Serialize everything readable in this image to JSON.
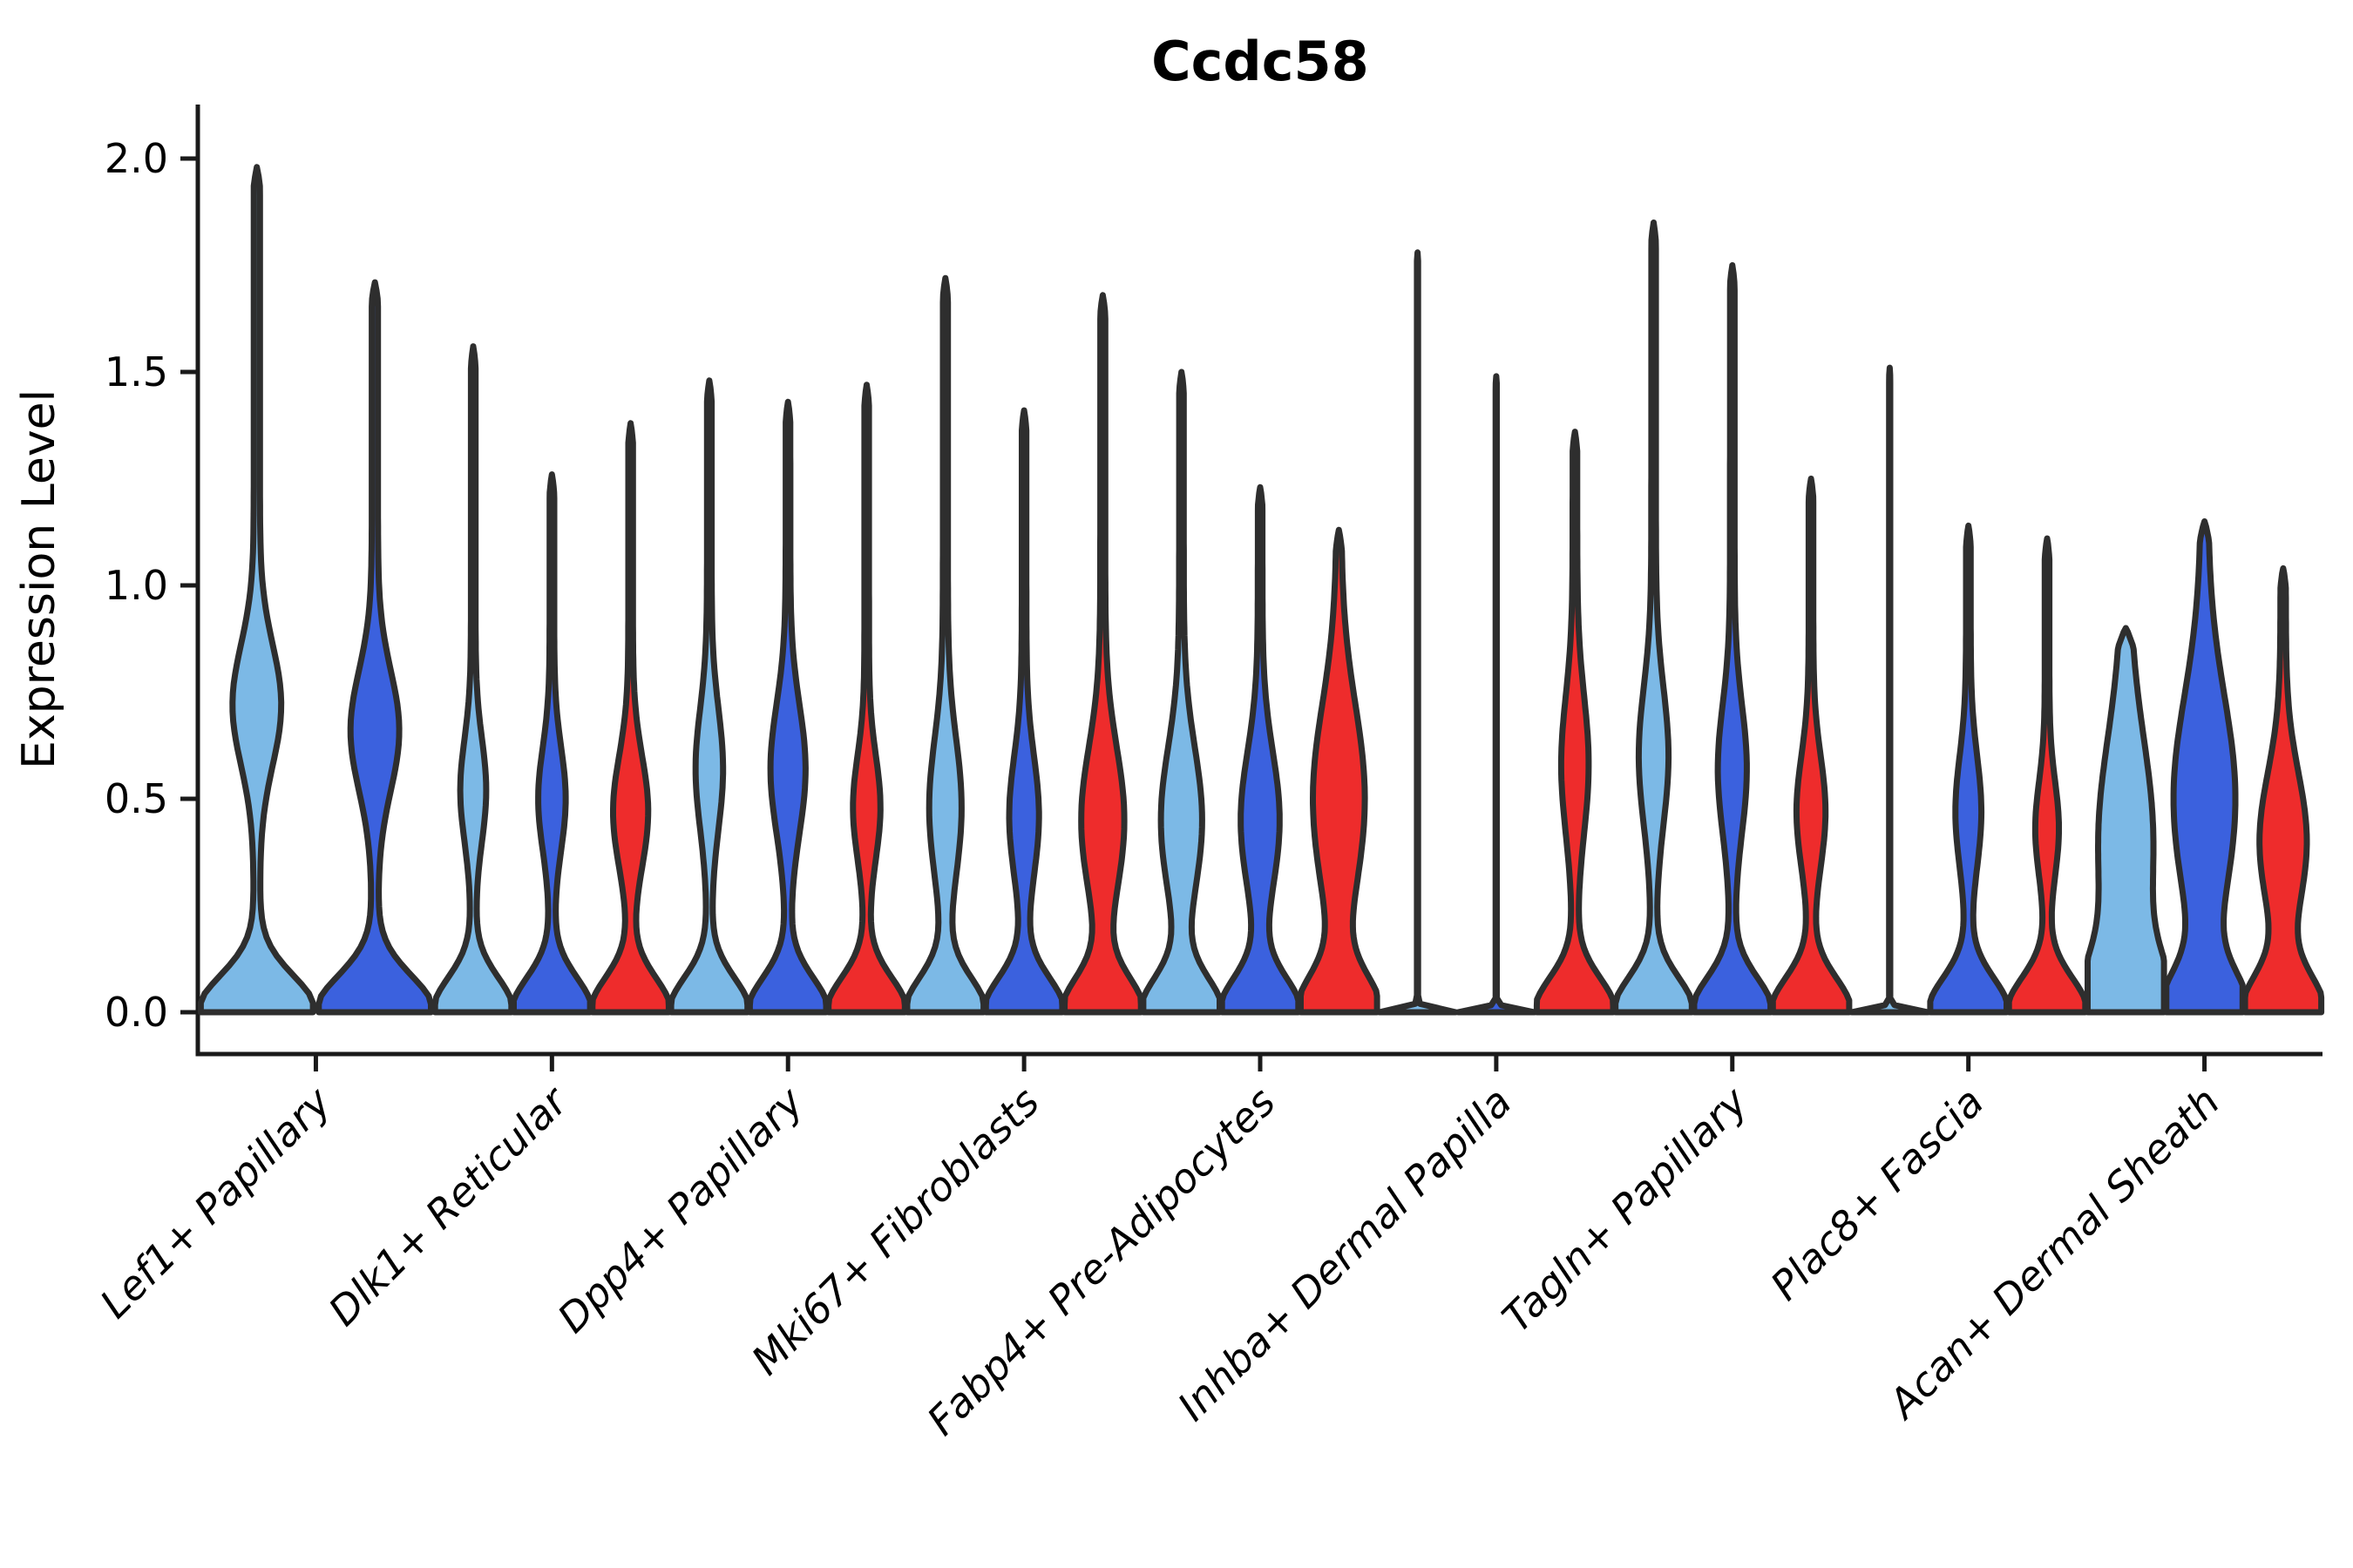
{
  "figure": {
    "background": "#ffffff"
  },
  "chart_data": {
    "type": "violin",
    "title": "Ccdc58",
    "ylabel": "Expression Level",
    "xlabel": "",
    "ylim": [
      0.0,
      2.13
    ],
    "yticks": [
      0.0,
      0.5,
      1.0,
      1.5,
      2.0
    ],
    "ytick_labels": [
      "0.0",
      "0.5",
      "1.0",
      "1.5",
      "2.0"
    ],
    "legend": "none",
    "grid": false,
    "colors": [
      "#7CB9E6",
      "#3B61DE",
      "#EE2C2C"
    ],
    "color_names": [
      "light-blue",
      "dark-blue",
      "red"
    ],
    "edge_color": "#2E2E2E",
    "axis_color": "#1a1a1a",
    "categories": [
      "Lef1+ Papillary",
      "Dlk1+ Reticular",
      "Dpp4+ Papillary",
      "Mki67+ Fibroblasts",
      "Fabp4+ Pre-Adipocytes",
      "Inhba+ Dermal Papilla",
      "Tagln+ Papillary",
      "Plac8+ Fascia",
      "Acan+ Dermal Sheath"
    ],
    "groups": [
      {
        "category": "Lef1+ Papillary",
        "violins": [
          {
            "series": 0,
            "max": 1.98,
            "stem": 0.055,
            "bumps": [
              [
                1,
                0,
                0.085
              ],
              [
                0.38,
                0.72,
                0.14
              ]
            ]
          },
          {
            "series": 1,
            "max": 1.71,
            "stem": 0.055,
            "bumps": [
              [
                1,
                0,
                0.085
              ],
              [
                0.38,
                0.66,
                0.14
              ]
            ]
          }
        ]
      },
      {
        "category": "Dlk1+ Reticular",
        "violins": [
          {
            "series": 0,
            "max": 1.56,
            "stem": 0.06,
            "bumps": [
              [
                1,
                0,
                0.08
              ],
              [
                0.28,
                0.52,
                0.12
              ]
            ]
          },
          {
            "series": 1,
            "max": 1.26,
            "stem": 0.06,
            "bumps": [
              [
                1,
                0,
                0.08
              ],
              [
                0.3,
                0.5,
                0.12
              ]
            ]
          },
          {
            "series": 2,
            "max": 1.38,
            "stem": 0.06,
            "bumps": [
              [
                1,
                0,
                0.08
              ],
              [
                0.4,
                0.47,
                0.13
              ]
            ]
          }
        ]
      },
      {
        "category": "Dpp4+ Papillary",
        "violins": [
          {
            "series": 0,
            "max": 1.48,
            "stem": 0.06,
            "bumps": [
              [
                1,
                0,
                0.08
              ],
              [
                0.3,
                0.57,
                0.14
              ]
            ]
          },
          {
            "series": 1,
            "max": 1.43,
            "stem": 0.06,
            "bumps": [
              [
                1,
                0,
                0.08
              ],
              [
                0.4,
                0.57,
                0.15
              ]
            ]
          },
          {
            "series": 2,
            "max": 1.47,
            "stem": 0.06,
            "bumps": [
              [
                1,
                0,
                0.08
              ],
              [
                0.3,
                0.48,
                0.12
              ]
            ]
          }
        ]
      },
      {
        "category": "Mki67+ Fibroblasts",
        "violins": [
          {
            "series": 0,
            "max": 1.72,
            "stem": 0.065,
            "bumps": [
              [
                1,
                0,
                0.08
              ],
              [
                0.36,
                0.48,
                0.16
              ]
            ]
          },
          {
            "series": 1,
            "max": 1.41,
            "stem": 0.06,
            "bumps": [
              [
                1,
                0,
                0.08
              ],
              [
                0.33,
                0.46,
                0.14
              ]
            ]
          },
          {
            "series": 2,
            "max": 1.68,
            "stem": 0.065,
            "bumps": [
              [
                1,
                0,
                0.08
              ],
              [
                0.5,
                0.45,
                0.17
              ]
            ]
          }
        ]
      },
      {
        "category": "Fabp4+ Pre-Adipocytes",
        "violins": [
          {
            "series": 0,
            "max": 1.5,
            "stem": 0.06,
            "bumps": [
              [
                1,
                0,
                0.08
              ],
              [
                0.48,
                0.45,
                0.17
              ]
            ]
          },
          {
            "series": 1,
            "max": 1.23,
            "stem": 0.06,
            "bumps": [
              [
                1,
                0,
                0.08
              ],
              [
                0.45,
                0.45,
                0.16
              ]
            ]
          },
          {
            "series": 2,
            "max": 1.13,
            "stem": 0.06,
            "bumps": [
              [
                1,
                0,
                0.085
              ],
              [
                0.62,
                0.5,
                0.22
              ]
            ]
          }
        ]
      },
      {
        "category": "Inhba+ Dermal Papilla",
        "violins": [
          {
            "series": 0,
            "max": 1.78,
            "stem": 0.015,
            "line": true,
            "bumps": [
              [
                1,
                0,
                0.008
              ]
            ]
          },
          {
            "series": 1,
            "max": 1.49,
            "stem": 0.015,
            "line": true,
            "bumps": [
              [
                1,
                0,
                0.008
              ]
            ]
          },
          {
            "series": 2,
            "max": 1.36,
            "stem": 0.06,
            "bumps": [
              [
                1,
                0,
                0.08
              ],
              [
                0.3,
                0.58,
                0.16
              ]
            ]
          }
        ]
      },
      {
        "category": "Tagln+ Papillary",
        "violins": [
          {
            "series": 0,
            "max": 1.85,
            "stem": 0.06,
            "bumps": [
              [
                1,
                0,
                0.08
              ],
              [
                0.33,
                0.6,
                0.16
              ]
            ]
          },
          {
            "series": 1,
            "max": 1.75,
            "stem": 0.06,
            "bumps": [
              [
                1,
                0,
                0.08
              ],
              [
                0.32,
                0.57,
                0.15
              ]
            ]
          },
          {
            "series": 2,
            "max": 1.25,
            "stem": 0.06,
            "bumps": [
              [
                1,
                0,
                0.08
              ],
              [
                0.32,
                0.47,
                0.13
              ]
            ]
          }
        ]
      },
      {
        "category": "Plac8+ Fascia",
        "violins": [
          {
            "series": 0,
            "max": 1.51,
            "stem": 0.015,
            "line": true,
            "bumps": [
              [
                1,
                0,
                0.008
              ]
            ]
          },
          {
            "series": 1,
            "max": 1.14,
            "stem": 0.06,
            "bumps": [
              [
                1,
                0,
                0.08
              ],
              [
                0.28,
                0.47,
                0.13
              ]
            ]
          },
          {
            "series": 2,
            "max": 1.11,
            "stem": 0.06,
            "bumps": [
              [
                1,
                0,
                0.08
              ],
              [
                0.25,
                0.43,
                0.11
              ]
            ]
          }
        ]
      },
      {
        "category": "Acan+ Dermal Sheath",
        "violins": [
          {
            "series": 0,
            "max": 0.9,
            "stem": 0.1,
            "bumps": [
              [
                1,
                0,
                0.12
              ],
              [
                0.62,
                0.4,
                0.24
              ]
            ]
          },
          {
            "series": 1,
            "max": 1.15,
            "stem": 0.09,
            "bumps": [
              [
                1,
                0,
                0.09
              ],
              [
                0.72,
                0.5,
                0.24
              ]
            ]
          },
          {
            "series": 2,
            "max": 1.04,
            "stem": 0.07,
            "bumps": [
              [
                1,
                0,
                0.085
              ],
              [
                0.55,
                0.4,
                0.16
              ]
            ]
          }
        ]
      }
    ]
  }
}
